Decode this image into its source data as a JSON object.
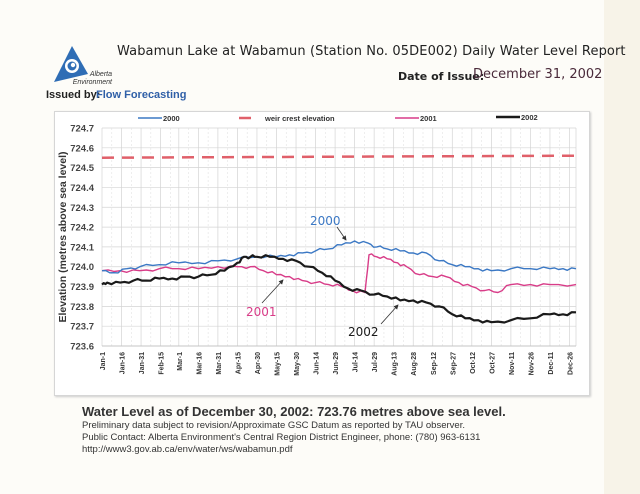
{
  "header": {
    "title": "Wabamun Lake at Wabamun (Station No. 05DE002) Daily Water Level Report",
    "date_label": "Date of Issue:",
    "date_value": "December 31, 2002",
    "issued_label": "Issued by:",
    "issued_value": "Flow Forecasting",
    "logo_text_line1": "Alberta",
    "logo_text_line2": "Environment"
  },
  "colors": {
    "s2000": "#3b78c4",
    "weir": "#e0606a",
    "s2001": "#d83c88",
    "s2002": "#1a1a1a",
    "brand": "#2f5fa7"
  },
  "chart_data": {
    "type": "line",
    "title": "",
    "xlabel": "",
    "ylabel": "Elevation (metres above sea level)",
    "ylim": [
      723.6,
      724.7
    ],
    "yticks": [
      "724.7",
      "724.6",
      "724.5",
      "724.4",
      "724.3",
      "724.2",
      "724.1",
      "724.0",
      "723.9",
      "723.8",
      "723.7",
      "723.6"
    ],
    "x_day_range": [
      1,
      365
    ],
    "xtick_days": [
      1,
      16,
      31,
      46,
      60,
      75,
      90,
      105,
      120,
      135,
      150,
      165,
      180,
      195,
      210,
      225,
      240,
      255,
      270,
      285,
      300,
      315,
      330,
      345,
      360
    ],
    "xticks": [
      "Jan-1",
      "Jan-16",
      "Jan-31",
      "Feb-15",
      "Mar-1",
      "Mar-16",
      "Mar-31",
      "Apr-15",
      "Apr-30",
      "May-15",
      "May-30",
      "Jun-14",
      "Jun-29",
      "Jul-14",
      "Jul-29",
      "Aug-13",
      "Aug-28",
      "Sep-12",
      "Sep-27",
      "Oct-12",
      "Oct-27",
      "Nov-11",
      "Nov-26",
      "Dec-11",
      "Dec-26"
    ],
    "grid": true,
    "legend_position": "top",
    "series": [
      {
        "name": "2000",
        "color_key": "s2000",
        "x": [
          1,
          10,
          20,
          30,
          45,
          60,
          75,
          90,
          105,
          120,
          135,
          145,
          155,
          165,
          175,
          185,
          195,
          205,
          212,
          220,
          230,
          240,
          250,
          260,
          270,
          280,
          290,
          300,
          315,
          330,
          345,
          355,
          365
        ],
        "y": [
          723.98,
          723.97,
          723.99,
          724.0,
          724.01,
          724.02,
          724.02,
          724.03,
          724.04,
          724.05,
          724.05,
          724.06,
          724.07,
          724.08,
          724.09,
          724.11,
          724.13,
          724.12,
          724.1,
          724.09,
          724.08,
          724.07,
          724.07,
          724.03,
          724.01,
          724.0,
          723.99,
          723.98,
          723.99,
          723.99,
          723.99,
          723.99,
          723.99
        ]
      },
      {
        "name": "weir crest elevation",
        "color_key": "weir",
        "dashed": true,
        "x": [
          1,
          365
        ],
        "y": [
          724.55,
          724.56
        ]
      },
      {
        "name": "2001",
        "color_key": "s2001",
        "x": [
          1,
          15,
          30,
          45,
          60,
          75,
          90,
          105,
          115,
          125,
          135,
          145,
          155,
          165,
          175,
          185,
          193,
          203,
          206,
          212,
          220,
          228,
          235,
          245,
          255,
          265,
          275,
          285,
          295,
          305,
          315,
          330,
          345,
          365
        ],
        "y": [
          723.98,
          723.98,
          723.98,
          723.99,
          723.99,
          723.99,
          724.0,
          724.0,
          724.0,
          723.98,
          723.96,
          723.95,
          723.93,
          723.92,
          723.91,
          723.9,
          723.88,
          723.87,
          724.06,
          724.05,
          724.04,
          724.02,
          724.0,
          723.96,
          723.95,
          723.95,
          723.92,
          723.9,
          723.88,
          723.87,
          723.91,
          723.91,
          723.91,
          723.91
        ]
      },
      {
        "name": "2002",
        "color_key": "s2002",
        "x": [
          1,
          5,
          15,
          25,
          35,
          45,
          55,
          65,
          75,
          85,
          95,
          105,
          110,
          115,
          120,
          130,
          140,
          150,
          160,
          170,
          180,
          190,
          200,
          210,
          220,
          230,
          240,
          250,
          260,
          270,
          280,
          290,
          300,
          315,
          330,
          345,
          355,
          365
        ],
        "y": [
          723.91,
          723.92,
          723.92,
          723.93,
          723.93,
          723.94,
          723.94,
          723.95,
          723.95,
          723.96,
          723.98,
          724.02,
          724.05,
          724.05,
          724.05,
          724.05,
          724.04,
          724.03,
          724.0,
          723.97,
          723.93,
          723.89,
          723.88,
          723.86,
          723.85,
          723.83,
          723.83,
          723.82,
          723.8,
          723.76,
          723.74,
          723.73,
          723.72,
          723.73,
          723.74,
          723.76,
          723.76,
          723.77
        ]
      }
    ],
    "annotations": [
      {
        "text": "2000",
        "color_key": "s2000"
      },
      {
        "text": "2001",
        "color_key": "s2001"
      },
      {
        "text": "2002",
        "color_key": "s2002"
      }
    ]
  },
  "footer": {
    "headline": "Water Level as of December 30, 2002:  723.76 metres above sea level.",
    "line1": "Preliminary data subject to revision/Approximate GSC Datum as reported by TAU observer.",
    "line2": "Public Contact: Alberta Environment's Central Region District Engineer, phone: (780) 963-6131",
    "line3": "http://www3.gov.ab.ca/env/water/ws/wabamun.pdf"
  }
}
